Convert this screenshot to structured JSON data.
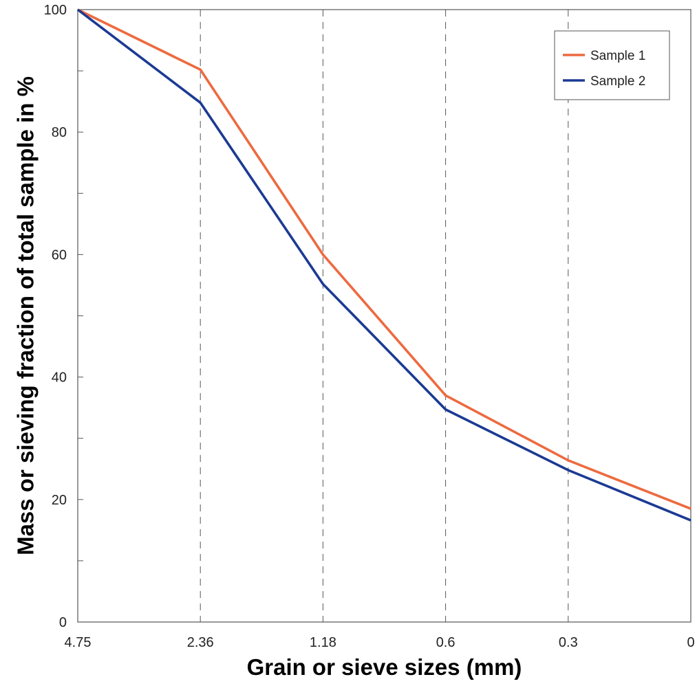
{
  "chart_data": {
    "type": "line",
    "title": "",
    "xlabel": "Grain or sieve sizes (mm)",
    "ylabel": "Mass or sieving fraction of total sample in %",
    "categories": [
      "4.75",
      "2.36",
      "1.18",
      "0.6",
      "0.3",
      "0"
    ],
    "ylim": [
      0,
      100
    ],
    "y_ticks": [
      "0",
      "20",
      "40",
      "60",
      "80",
      "100"
    ],
    "y_minor_step": 10,
    "grid": "vertical dashed lines at each category",
    "legend_position": "top-right",
    "series": [
      {
        "name": "Sample 1",
        "color": "#ED6A3F",
        "values": [
          100,
          90.2,
          60,
          37,
          26.4,
          18.5
        ]
      },
      {
        "name": "Sample 2",
        "color": "#1B3A93",
        "values": [
          100,
          84.8,
          55.2,
          34.7,
          24.8,
          16.6
        ]
      }
    ]
  }
}
